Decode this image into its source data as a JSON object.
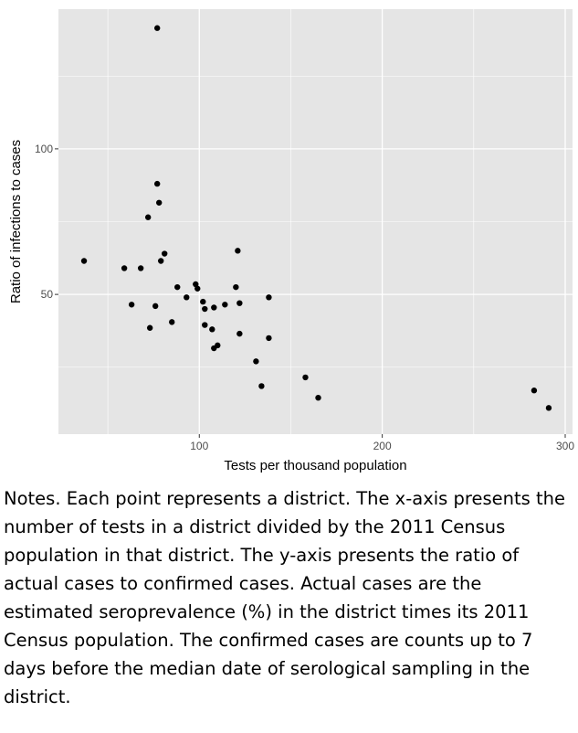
{
  "chart_data": {
    "type": "scatter",
    "title": "",
    "xlabel": "Tests per thousand population",
    "ylabel": "Ratio of infections to cases",
    "xlim": [
      23,
      304
    ],
    "ylim": [
      2,
      148
    ],
    "x_ticks": [
      100,
      200,
      300
    ],
    "y_ticks": [
      50,
      100
    ],
    "x_tick_labels": [
      "100",
      "200",
      "300"
    ],
    "y_tick_labels": [
      "50",
      "100"
    ],
    "grid": true,
    "legend": "none",
    "panel_background": "#e5e5e5",
    "grid_color": "#ffffff",
    "point_color": "#000000",
    "points": [
      {
        "x": 37,
        "y": 61.5
      },
      {
        "x": 59,
        "y": 59
      },
      {
        "x": 63,
        "y": 46.5
      },
      {
        "x": 68,
        "y": 59
      },
      {
        "x": 72,
        "y": 76.5
      },
      {
        "x": 73,
        "y": 38.5
      },
      {
        "x": 76,
        "y": 46
      },
      {
        "x": 77,
        "y": 88
      },
      {
        "x": 78,
        "y": 81.5
      },
      {
        "x": 79,
        "y": 61.5
      },
      {
        "x": 81,
        "y": 64
      },
      {
        "x": 85,
        "y": 40.5
      },
      {
        "x": 88,
        "y": 52.5
      },
      {
        "x": 93,
        "y": 49
      },
      {
        "x": 98,
        "y": 53.5
      },
      {
        "x": 99,
        "y": 52
      },
      {
        "x": 102,
        "y": 47.5
      },
      {
        "x": 103,
        "y": 39.5
      },
      {
        "x": 103,
        "y": 45
      },
      {
        "x": 107,
        "y": 38
      },
      {
        "x": 108,
        "y": 45.5
      },
      {
        "x": 108,
        "y": 31.5
      },
      {
        "x": 110,
        "y": 32.5
      },
      {
        "x": 114,
        "y": 46.5
      },
      {
        "x": 120,
        "y": 52.5
      },
      {
        "x": 121,
        "y": 65
      },
      {
        "x": 122,
        "y": 47
      },
      {
        "x": 122,
        "y": 36.5
      },
      {
        "x": 131,
        "y": 27
      },
      {
        "x": 134,
        "y": 18.5
      },
      {
        "x": 138,
        "y": 49
      },
      {
        "x": 138,
        "y": 35
      },
      {
        "x": 158,
        "y": 21.5
      },
      {
        "x": 165,
        "y": 14.5
      },
      {
        "x": 77,
        "y": 141.5
      },
      {
        "x": 283,
        "y": 17
      },
      {
        "x": 291,
        "y": 11
      }
    ]
  },
  "notes": "Notes.  Each point represents a district.  The x-axis presents the number of tests in a district divided by the 2011 Census population in that district.  The y-axis presents the ratio of actual cases to confirmed cases.  Actual cases are the estimated seroprevalence (%) in the district times its 2011 Census population.  The confirmed cases are counts up to 7 days before the median date of serological sampling in the district."
}
